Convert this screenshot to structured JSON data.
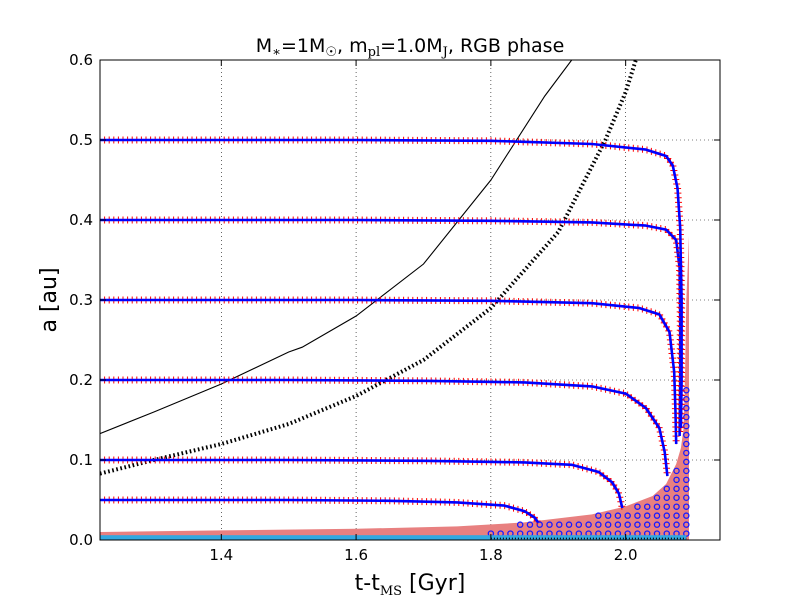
{
  "chart_data": {
    "type": "line",
    "title": {
      "parts": [
        {
          "text": "M",
          "style": "normal"
        },
        {
          "text": "∗",
          "style": "sub"
        },
        {
          "text": "=1M",
          "style": "normal"
        },
        {
          "text": "☉",
          "style": "sub"
        },
        {
          "text": ", m",
          "style": "normal"
        },
        {
          "text": "pl",
          "style": "sub"
        },
        {
          "text": "=1.0M",
          "style": "normal"
        },
        {
          "text": "J",
          "style": "sub"
        },
        {
          "text": ", RGB phase",
          "style": "normal"
        }
      ]
    },
    "xlabel": {
      "main": "t-t",
      "sub": "MS",
      "unit": " [Gyr]"
    },
    "ylabel": "a [au]",
    "xlim": [
      1.22,
      2.14
    ],
    "ylim": [
      0.0,
      0.6
    ],
    "xticks": [
      1.4,
      1.6,
      1.8,
      2.0
    ],
    "xtick_labels": [
      "1.4",
      "1.6",
      "1.8",
      "2.0"
    ],
    "yticks": [
      0.0,
      0.1,
      0.2,
      0.3,
      0.4,
      0.5,
      0.6
    ],
    "ytick_labels": [
      "0.0",
      "0.1",
      "0.2",
      "0.3",
      "0.4",
      "0.5",
      "0.6"
    ],
    "grid": true,
    "colors": {
      "orbit_line": "#0000ff",
      "orbit_cross": "#ff0000",
      "envelope_fill": "#e88080",
      "envelope_marker": "#1a1aff",
      "base_band": "#33a8e0",
      "reference_line": "#000000"
    },
    "reference_curves": [
      {
        "name": "solid-curve",
        "style": "solid",
        "points": [
          [
            1.22,
            0.133
          ],
          [
            1.3,
            0.16
          ],
          [
            1.4,
            0.195
          ],
          [
            1.5,
            0.235
          ],
          [
            1.52,
            0.241
          ],
          [
            1.6,
            0.28
          ],
          [
            1.7,
            0.345
          ],
          [
            1.8,
            0.45
          ],
          [
            1.88,
            0.555
          ],
          [
            1.92,
            0.6
          ]
        ]
      },
      {
        "name": "dotted-curve",
        "style": "dotted",
        "points": [
          [
            1.22,
            0.083
          ],
          [
            1.3,
            0.1
          ],
          [
            1.4,
            0.12
          ],
          [
            1.5,
            0.145
          ],
          [
            1.6,
            0.18
          ],
          [
            1.7,
            0.225
          ],
          [
            1.8,
            0.29
          ],
          [
            1.9,
            0.385
          ],
          [
            1.97,
            0.5
          ],
          [
            2.0,
            0.56
          ],
          [
            2.015,
            0.6
          ]
        ]
      }
    ],
    "envelope": {
      "name": "stellar-envelope",
      "points": [
        [
          1.22,
          0.01
        ],
        [
          1.4,
          0.012
        ],
        [
          1.6,
          0.014
        ],
        [
          1.75,
          0.017
        ],
        [
          1.85,
          0.022
        ],
        [
          1.95,
          0.032
        ],
        [
          2.0,
          0.042
        ],
        [
          2.04,
          0.055
        ],
        [
          2.06,
          0.07
        ],
        [
          2.075,
          0.095
        ],
        [
          2.082,
          0.115
        ],
        [
          2.086,
          0.14
        ],
        [
          2.088,
          0.2
        ],
        [
          2.09,
          0.3
        ],
        [
          2.094,
          0.38
        ],
        [
          2.094,
          0.0
        ],
        [
          1.22,
          0.0
        ]
      ]
    },
    "base_band": {
      "x": [
        1.22,
        2.09
      ],
      "y": [
        0.0,
        0.006
      ]
    },
    "series": [
      {
        "name": "a0=0.05",
        "points": [
          [
            1.22,
            0.05
          ],
          [
            1.5,
            0.05
          ],
          [
            1.65,
            0.049
          ],
          [
            1.75,
            0.047
          ],
          [
            1.82,
            0.043
          ],
          [
            1.85,
            0.036
          ],
          [
            1.865,
            0.028
          ],
          [
            1.87,
            0.022
          ]
        ]
      },
      {
        "name": "a0=0.10",
        "points": [
          [
            1.22,
            0.1
          ],
          [
            1.5,
            0.1
          ],
          [
            1.7,
            0.099
          ],
          [
            1.85,
            0.097
          ],
          [
            1.92,
            0.094
          ],
          [
            1.96,
            0.085
          ],
          [
            1.98,
            0.072
          ],
          [
            1.99,
            0.058
          ],
          [
            1.995,
            0.04
          ]
        ]
      },
      {
        "name": "a0=0.20",
        "points": [
          [
            1.22,
            0.2
          ],
          [
            1.5,
            0.2
          ],
          [
            1.7,
            0.199
          ],
          [
            1.85,
            0.197
          ],
          [
            1.95,
            0.192
          ],
          [
            2.0,
            0.183
          ],
          [
            2.03,
            0.165
          ],
          [
            2.05,
            0.14
          ],
          [
            2.058,
            0.11
          ],
          [
            2.062,
            0.08
          ]
        ]
      },
      {
        "name": "a0=0.30",
        "points": [
          [
            1.22,
            0.3
          ],
          [
            1.6,
            0.3
          ],
          [
            1.8,
            0.299
          ],
          [
            1.95,
            0.296
          ],
          [
            2.02,
            0.29
          ],
          [
            2.05,
            0.282
          ],
          [
            2.065,
            0.26
          ],
          [
            2.072,
            0.21
          ],
          [
            2.074,
            0.16
          ],
          [
            2.075,
            0.12
          ]
        ]
      },
      {
        "name": "a0=0.40",
        "points": [
          [
            1.22,
            0.4
          ],
          [
            1.6,
            0.4
          ],
          [
            1.8,
            0.399
          ],
          [
            1.95,
            0.397
          ],
          [
            2.03,
            0.393
          ],
          [
            2.06,
            0.388
          ],
          [
            2.075,
            0.375
          ],
          [
            2.08,
            0.34
          ],
          [
            2.081,
            0.28
          ],
          [
            2.081,
            0.2
          ],
          [
            2.08,
            0.13
          ]
        ]
      },
      {
        "name": "a0=0.50",
        "points": [
          [
            1.22,
            0.5
          ],
          [
            1.6,
            0.5
          ],
          [
            1.8,
            0.499
          ],
          [
            1.95,
            0.495
          ],
          [
            2.03,
            0.488
          ],
          [
            2.06,
            0.48
          ],
          [
            2.07,
            0.468
          ],
          [
            2.077,
            0.44
          ],
          [
            2.081,
            0.39
          ],
          [
            2.083,
            0.3
          ],
          [
            2.083,
            0.2
          ],
          [
            2.082,
            0.14
          ]
        ]
      }
    ]
  }
}
